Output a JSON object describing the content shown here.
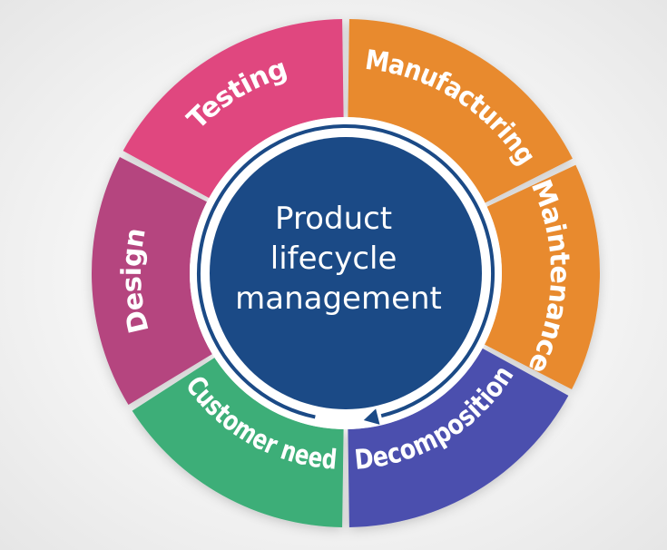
{
  "diagram": {
    "center": {
      "lines": [
        "Product",
        "lifecycle",
        "management"
      ],
      "color": "#1b4a86"
    },
    "segments": [
      {
        "label": "Manufacturing",
        "color": "#e88a2e"
      },
      {
        "label": "Maintenance",
        "color": "#e88a2e"
      },
      {
        "label": "Decomposition",
        "color": "#4b4fae"
      },
      {
        "label": "Customer need",
        "color": "#3dae78"
      },
      {
        "label": "Design",
        "color": "#b5457f"
      },
      {
        "label": "Testing",
        "color": "#e0477f"
      }
    ],
    "arrow_color": "#1b4a86"
  }
}
